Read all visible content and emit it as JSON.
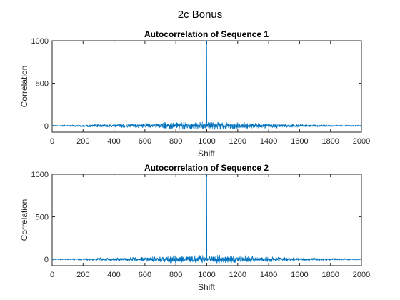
{
  "figure": {
    "title": "2c Bonus"
  },
  "colors": {
    "background": "#ffffff",
    "axes_edge": "#262626",
    "series": "#0072BD"
  },
  "chart_data": [
    {
      "type": "line",
      "title": "Autocorrelation of Sequence 1",
      "xlabel": "Shift",
      "ylabel": "Correlation",
      "xlim": [
        0,
        2000
      ],
      "ylim": [
        -75,
        1000
      ],
      "xticks": [
        0,
        200,
        400,
        600,
        800,
        1000,
        1200,
        1400,
        1600,
        1800,
        2000
      ],
      "yticks": [
        0,
        500,
        1000
      ],
      "grid": false,
      "legend": "none",
      "series": [
        {
          "color": "#0072BD",
          "peak": {
            "x": 1000,
            "y": 1000
          },
          "noise_envelope": [
            {
              "x": 0,
              "amp": 12
            },
            {
              "x": 200,
              "amp": 20
            },
            {
              "x": 400,
              "amp": 30
            },
            {
              "x": 600,
              "amp": 42
            },
            {
              "x": 800,
              "amp": 65
            },
            {
              "x": 1000,
              "amp": 75
            },
            {
              "x": 1200,
              "amp": 65
            },
            {
              "x": 1400,
              "amp": 42
            },
            {
              "x": 1600,
              "amp": 30
            },
            {
              "x": 1800,
              "amp": 20
            },
            {
              "x": 2000,
              "amp": 12
            }
          ]
        }
      ]
    },
    {
      "type": "line",
      "title": "Autocorrelation of Sequence 2",
      "xlabel": "Shift",
      "ylabel": "Correlation",
      "xlim": [
        0,
        2000
      ],
      "ylim": [
        -75,
        1000
      ],
      "xticks": [
        0,
        200,
        400,
        600,
        800,
        1000,
        1200,
        1400,
        1600,
        1800,
        2000
      ],
      "yticks": [
        0,
        500,
        1000
      ],
      "grid": false,
      "legend": "none",
      "series": [
        {
          "color": "#0072BD",
          "peak": {
            "x": 1000,
            "y": 1000
          },
          "noise_envelope": [
            {
              "x": 0,
              "amp": 12
            },
            {
              "x": 200,
              "amp": 20
            },
            {
              "x": 400,
              "amp": 30
            },
            {
              "x": 600,
              "amp": 42
            },
            {
              "x": 800,
              "amp": 62
            },
            {
              "x": 1000,
              "amp": 72
            },
            {
              "x": 1200,
              "amp": 62
            },
            {
              "x": 1400,
              "amp": 42
            },
            {
              "x": 1600,
              "amp": 30
            },
            {
              "x": 1800,
              "amp": 20
            },
            {
              "x": 2000,
              "amp": 12
            }
          ]
        }
      ]
    }
  ]
}
